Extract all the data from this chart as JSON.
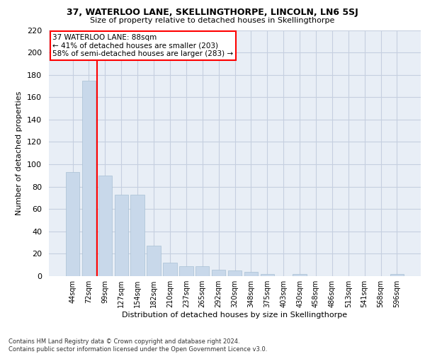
{
  "title": "37, WATERLOO LANE, SKELLINGTHORPE, LINCOLN, LN6 5SJ",
  "subtitle": "Size of property relative to detached houses in Skellingthorpe",
  "xlabel": "Distribution of detached houses by size in Skellingthorpe",
  "ylabel": "Number of detached properties",
  "bar_color": "#c8d8ea",
  "bar_edge_color": "#a8c0d4",
  "grid_color": "#c5cfe0",
  "bg_color": "#e8eef6",
  "vline_color": "red",
  "annotation_text": "37 WATERLOO LANE: 88sqm\n← 41% of detached houses are smaller (203)\n58% of semi-detached houses are larger (283) →",
  "annotation_box_color": "white",
  "annotation_box_edge": "red",
  "footer": "Contains HM Land Registry data © Crown copyright and database right 2024.\nContains public sector information licensed under the Open Government Licence v3.0.",
  "categories": [
    "44sqm",
    "72sqm",
    "99sqm",
    "127sqm",
    "154sqm",
    "182sqm",
    "210sqm",
    "237sqm",
    "265sqm",
    "292sqm",
    "320sqm",
    "348sqm",
    "375sqm",
    "403sqm",
    "430sqm",
    "458sqm",
    "486sqm",
    "513sqm",
    "541sqm",
    "568sqm",
    "596sqm"
  ],
  "values": [
    93,
    175,
    90,
    73,
    73,
    27,
    12,
    9,
    9,
    6,
    5,
    4,
    2,
    0,
    2,
    0,
    0,
    0,
    0,
    0,
    2
  ],
  "ylim": [
    0,
    220
  ],
  "yticks": [
    0,
    20,
    40,
    60,
    80,
    100,
    120,
    140,
    160,
    180,
    200,
    220
  ]
}
